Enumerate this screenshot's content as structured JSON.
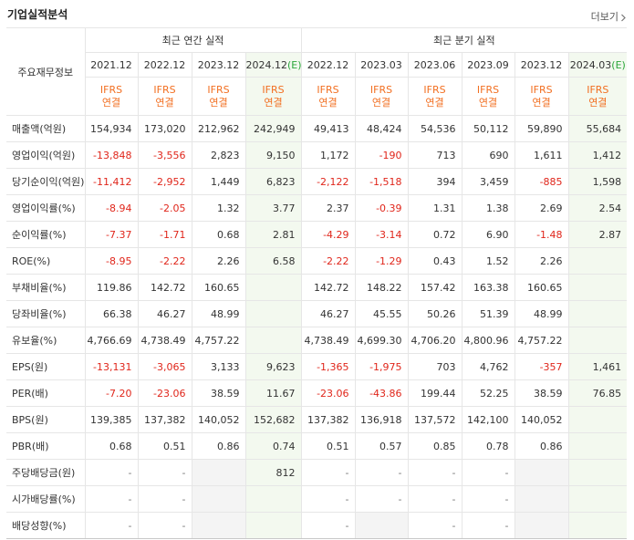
{
  "header": {
    "title": "기업실적분석",
    "more": "더보기"
  },
  "table": {
    "row_header": "주요재무정보",
    "groups": [
      "최근 연간 실적",
      "최근 분기 실적"
    ],
    "columns": [
      {
        "period": "2021.12",
        "basis": "IFRS",
        "scope": "연결"
      },
      {
        "period": "2022.12",
        "basis": "IFRS",
        "scope": "연결"
      },
      {
        "period": "2023.12",
        "basis": "IFRS",
        "scope": "연결"
      },
      {
        "period": "2024.12",
        "estimate": "(E)",
        "basis": "IFRS",
        "scope": "연결"
      },
      {
        "period": "2022.12",
        "basis": "IFRS",
        "scope": "연결"
      },
      {
        "period": "2023.03",
        "basis": "IFRS",
        "scope": "연결"
      },
      {
        "period": "2023.06",
        "basis": "IFRS",
        "scope": "연결"
      },
      {
        "period": "2023.09",
        "basis": "IFRS",
        "scope": "연결"
      },
      {
        "period": "2023.12",
        "basis": "IFRS",
        "scope": "연결"
      },
      {
        "period": "2024.03",
        "estimate": "(E)",
        "basis": "IFRS",
        "scope": "연결"
      }
    ],
    "rows": [
      {
        "label": "매출액(억원)",
        "values": [
          "154,934",
          "173,020",
          "212,962",
          "242,949",
          "49,413",
          "48,424",
          "54,536",
          "50,112",
          "59,890",
          "55,684"
        ]
      },
      {
        "label": "영업이익(억원)",
        "values": [
          "-13,848",
          "-3,556",
          "2,823",
          "9,150",
          "1,172",
          "-190",
          "713",
          "690",
          "1,611",
          "1,412"
        ]
      },
      {
        "label": "당기순이익(억원)",
        "values": [
          "-11,412",
          "-2,952",
          "1,449",
          "6,823",
          "-2,122",
          "-1,518",
          "394",
          "3,459",
          "-885",
          "1,598"
        ]
      },
      {
        "label": "영업이익률(%)",
        "values": [
          "-8.94",
          "-2.05",
          "1.32",
          "3.77",
          "2.37",
          "-0.39",
          "1.31",
          "1.38",
          "2.69",
          "2.54"
        ]
      },
      {
        "label": "순이익률(%)",
        "values": [
          "-7.37",
          "-1.71",
          "0.68",
          "2.81",
          "-4.29",
          "-3.14",
          "0.72",
          "6.90",
          "-1.48",
          "2.87"
        ]
      },
      {
        "label": "ROE(%)",
        "values": [
          "-8.95",
          "-2.22",
          "2.26",
          "6.58",
          "-2.22",
          "-1.29",
          "0.43",
          "1.52",
          "2.26",
          null
        ]
      },
      {
        "label": "부채비율(%)",
        "values": [
          "119.86",
          "142.72",
          "160.65",
          null,
          "142.72",
          "148.22",
          "157.42",
          "163.38",
          "160.65",
          null
        ]
      },
      {
        "label": "당좌비율(%)",
        "values": [
          "66.38",
          "46.27",
          "48.99",
          null,
          "46.27",
          "45.55",
          "50.26",
          "51.39",
          "48.99",
          null
        ]
      },
      {
        "label": "유보율(%)",
        "values": [
          "4,766.69",
          "4,738.49",
          "4,757.22",
          null,
          "4,738.49",
          "4,699.30",
          "4,706.20",
          "4,800.96",
          "4,757.22",
          null
        ]
      },
      {
        "label": "EPS(원)",
        "values": [
          "-13,131",
          "-3,065",
          "3,133",
          "9,623",
          "-1,365",
          "-1,975",
          "703",
          "4,762",
          "-357",
          "1,461"
        ]
      },
      {
        "label": "PER(배)",
        "values": [
          "-7.20",
          "-23.06",
          "38.59",
          "11.67",
          "-23.06",
          "-43.86",
          "199.44",
          "52.25",
          "38.59",
          "76.85"
        ]
      },
      {
        "label": "BPS(원)",
        "values": [
          "139,385",
          "137,382",
          "140,052",
          "152,682",
          "137,382",
          "136,918",
          "137,572",
          "142,100",
          "140,052",
          null
        ]
      },
      {
        "label": "PBR(배)",
        "values": [
          "0.68",
          "0.51",
          "0.86",
          "0.74",
          "0.51",
          "0.57",
          "0.85",
          "0.78",
          "0.86",
          null
        ]
      },
      {
        "label": "주당배당금(원)",
        "values": [
          "-",
          "-",
          null,
          "812",
          "-",
          "-",
          "-",
          "-",
          null,
          null
        ]
      },
      {
        "label": "시가배당률(%)",
        "values": [
          "-",
          "-",
          null,
          null,
          "-",
          "-",
          "-",
          "-",
          null,
          null
        ]
      },
      {
        "label": "배당성향(%)",
        "values": [
          "-",
          "-",
          null,
          null,
          "-",
          null,
          "-",
          "-",
          null,
          null
        ]
      }
    ]
  }
}
